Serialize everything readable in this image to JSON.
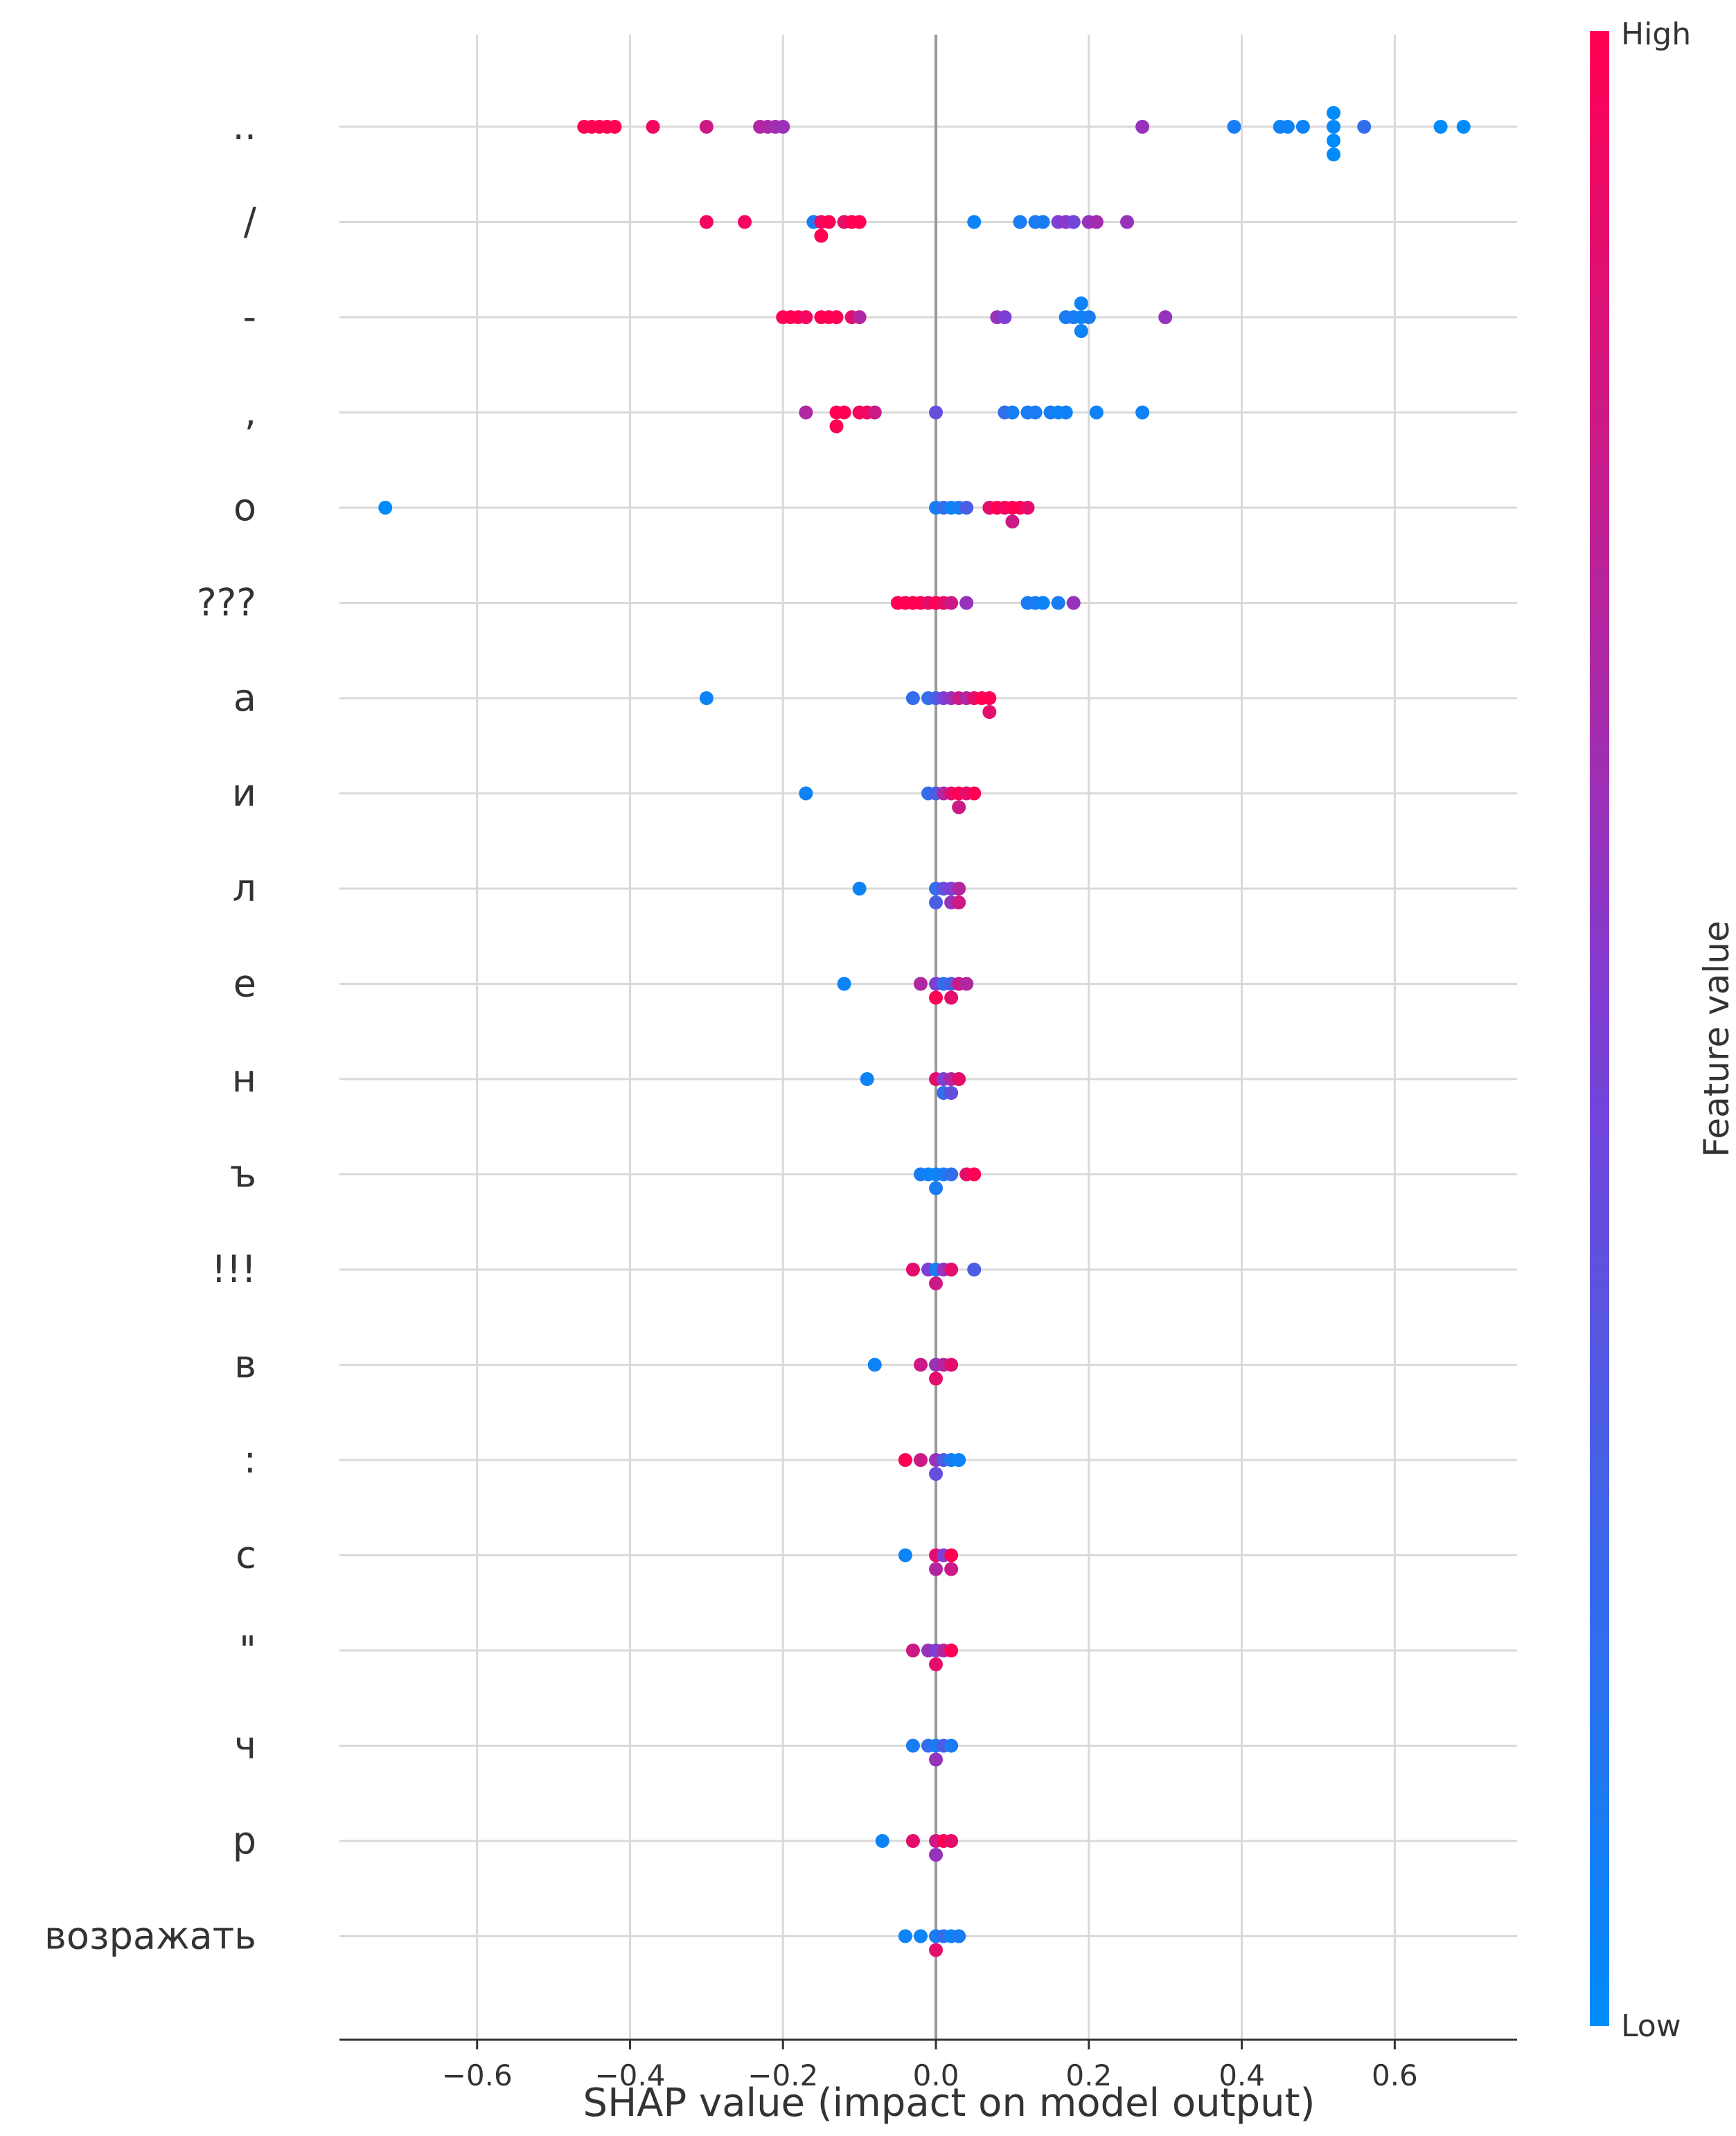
{
  "chart_data": {
    "type": "scatter",
    "subtype": "shap-beeswarm",
    "xlabel": "SHAP value (impact on model output)",
    "xlim": [
      -0.78,
      0.76
    ],
    "xticks": [
      -0.6,
      -0.4,
      -0.2,
      0.0,
      0.2,
      0.4,
      0.6
    ],
    "xtick_labels": [
      "−0.6",
      "−0.4",
      "−0.2",
      "0.0",
      "0.2",
      "0.4",
      "0.6"
    ],
    "colorbar": {
      "label": "Feature value",
      "high": "High",
      "low": "Low",
      "high_color": "#ff0052",
      "low_color": "#008bfb"
    },
    "features": [
      {
        "name": "..",
        "points": [
          [
            -0.46,
            1
          ],
          [
            -0.45,
            1
          ],
          [
            -0.44,
            1
          ],
          [
            -0.43,
            1
          ],
          [
            -0.42,
            1
          ],
          [
            -0.37,
            0.95
          ],
          [
            -0.3,
            0.8
          ],
          [
            -0.23,
            0.7
          ],
          [
            -0.22,
            0.68
          ],
          [
            -0.21,
            0.65
          ],
          [
            -0.2,
            0.62
          ],
          [
            0.27,
            0.6
          ],
          [
            0.39,
            0.1
          ],
          [
            0.45,
            0.05
          ],
          [
            0.46,
            0.05
          ],
          [
            0.48,
            0.05
          ],
          [
            0.52,
            0.02
          ],
          [
            0.52,
            0.0
          ],
          [
            0.52,
            0.0
          ],
          [
            0.52,
            0.0
          ],
          [
            0.56,
            0.2
          ],
          [
            0.66,
            0.0
          ],
          [
            0.69,
            0.0
          ]
        ]
      },
      {
        "name": "/",
        "points": [
          [
            -0.3,
            0.95
          ],
          [
            -0.25,
            0.95
          ],
          [
            -0.16,
            0.1
          ],
          [
            -0.15,
            0.95
          ],
          [
            -0.15,
            1
          ],
          [
            -0.14,
            1
          ],
          [
            -0.12,
            0.9
          ],
          [
            -0.11,
            1
          ],
          [
            -0.1,
            1
          ],
          [
            0.05,
            0.05
          ],
          [
            0.11,
            0.1
          ],
          [
            0.13,
            0.1
          ],
          [
            0.14,
            0.1
          ],
          [
            0.16,
            0.5
          ],
          [
            0.17,
            0.55
          ],
          [
            0.18,
            0.45
          ],
          [
            0.2,
            0.6
          ],
          [
            0.21,
            0.65
          ],
          [
            0.25,
            0.6
          ]
        ]
      },
      {
        "name": "-",
        "points": [
          [
            -0.2,
            1
          ],
          [
            -0.19,
            1
          ],
          [
            -0.18,
            1
          ],
          [
            -0.17,
            0.95
          ],
          [
            -0.15,
            1
          ],
          [
            -0.14,
            1
          ],
          [
            -0.13,
            1
          ],
          [
            -0.11,
            0.9
          ],
          [
            -0.1,
            0.7
          ],
          [
            0.08,
            0.6
          ],
          [
            0.09,
            0.5
          ],
          [
            0.17,
            0.1
          ],
          [
            0.18,
            0.1
          ],
          [
            0.19,
            0.05
          ],
          [
            0.19,
            0.05
          ],
          [
            0.19,
            0.05
          ],
          [
            0.2,
            0.1
          ],
          [
            0.3,
            0.6
          ]
        ]
      },
      {
        "name": ",",
        "points": [
          [
            -0.17,
            0.7
          ],
          [
            -0.13,
            1
          ],
          [
            -0.13,
            1
          ],
          [
            -0.12,
            1
          ],
          [
            -0.1,
            0.95
          ],
          [
            -0.09,
            0.95
          ],
          [
            -0.08,
            0.8
          ],
          [
            0.0,
            0.4
          ],
          [
            0.09,
            0.2
          ],
          [
            0.1,
            0.1
          ],
          [
            0.12,
            0.1
          ],
          [
            0.13,
            0.1
          ],
          [
            0.15,
            0.1
          ],
          [
            0.16,
            0.05
          ],
          [
            0.17,
            0.05
          ],
          [
            0.21,
            0.05
          ],
          [
            0.27,
            0.05
          ]
        ]
      },
      {
        "name": "о",
        "points": [
          [
            -0.72,
            0.0
          ],
          [
            0.0,
            0.1
          ],
          [
            0.01,
            0.2
          ],
          [
            0.02,
            0.05
          ],
          [
            0.03,
            0.1
          ],
          [
            0.04,
            0.3
          ],
          [
            0.07,
            0.9
          ],
          [
            0.08,
            1
          ],
          [
            0.09,
            0.95
          ],
          [
            0.1,
            1
          ],
          [
            0.1,
            0.8
          ],
          [
            0.11,
            1
          ],
          [
            0.12,
            0.9
          ]
        ]
      },
      {
        "name": "???",
        "points": [
          [
            -0.05,
            1
          ],
          [
            -0.04,
            1
          ],
          [
            -0.03,
            1
          ],
          [
            -0.02,
            1
          ],
          [
            -0.01,
            0.9
          ],
          [
            0.0,
            1
          ],
          [
            0.01,
            0.9
          ],
          [
            0.02,
            0.8
          ],
          [
            0.04,
            0.6
          ],
          [
            0.12,
            0.1
          ],
          [
            0.13,
            0.1
          ],
          [
            0.14,
            0.05
          ],
          [
            0.16,
            0.1
          ],
          [
            0.18,
            0.6
          ]
        ]
      },
      {
        "name": "а",
        "points": [
          [
            -0.3,
            0.05
          ],
          [
            -0.03,
            0.2
          ],
          [
            -0.01,
            0.2
          ],
          [
            0.0,
            0.3
          ],
          [
            0.01,
            0.5
          ],
          [
            0.02,
            0.6
          ],
          [
            0.03,
            0.8
          ],
          [
            0.04,
            0.7
          ],
          [
            0.05,
            0.9
          ],
          [
            0.06,
            1
          ],
          [
            0.07,
            1
          ],
          [
            0.07,
            0.9
          ]
        ]
      },
      {
        "name": "и",
        "points": [
          [
            -0.17,
            0.05
          ],
          [
            -0.01,
            0.2
          ],
          [
            0.0,
            0.3
          ],
          [
            0.01,
            0.7
          ],
          [
            0.02,
            0.9
          ],
          [
            0.03,
            1
          ],
          [
            0.03,
            0.8
          ],
          [
            0.04,
            0.9
          ],
          [
            0.05,
            1
          ]
        ]
      },
      {
        "name": "л",
        "points": [
          [
            -0.1,
            0.05
          ],
          [
            0.0,
            0.2
          ],
          [
            0.0,
            0.3
          ],
          [
            0.01,
            0.4
          ],
          [
            0.02,
            0.5
          ],
          [
            0.02,
            0.6
          ],
          [
            0.03,
            0.7
          ],
          [
            0.03,
            0.8
          ]
        ]
      },
      {
        "name": "е",
        "points": [
          [
            -0.12,
            0.05
          ],
          [
            -0.02,
            0.7
          ],
          [
            0.0,
            0.5
          ],
          [
            0.0,
            1
          ],
          [
            0.01,
            0.2
          ],
          [
            0.02,
            0.3
          ],
          [
            0.02,
            0.9
          ],
          [
            0.03,
            0.8
          ],
          [
            0.04,
            0.7
          ]
        ]
      },
      {
        "name": "н",
        "points": [
          [
            -0.09,
            0.05
          ],
          [
            0.0,
            0.9
          ],
          [
            0.01,
            0.5
          ],
          [
            0.01,
            0.2
          ],
          [
            0.02,
            0.7
          ],
          [
            0.02,
            0.4
          ],
          [
            0.03,
            0.9
          ]
        ]
      },
      {
        "name": "ъ",
        "points": [
          [
            -0.02,
            0.1
          ],
          [
            -0.01,
            0.05
          ],
          [
            0.0,
            0.05
          ],
          [
            0.0,
            0.1
          ],
          [
            0.01,
            0.1
          ],
          [
            0.02,
            0.2
          ],
          [
            0.04,
            0.9
          ],
          [
            0.05,
            1
          ]
        ]
      },
      {
        "name": "!!!",
        "points": [
          [
            -0.03,
            0.9
          ],
          [
            -0.01,
            0.5
          ],
          [
            0.0,
            0.1
          ],
          [
            0.0,
            0.8
          ],
          [
            0.01,
            0.6
          ],
          [
            0.02,
            0.9
          ],
          [
            0.05,
            0.3
          ]
        ]
      },
      {
        "name": "в",
        "points": [
          [
            -0.08,
            0.05
          ],
          [
            -0.02,
            0.8
          ],
          [
            0.0,
            0.6
          ],
          [
            0.0,
            0.9
          ],
          [
            0.01,
            0.7
          ],
          [
            0.02,
            0.9
          ]
        ]
      },
      {
        "name": ":",
        "points": [
          [
            -0.04,
            1
          ],
          [
            -0.02,
            0.8
          ],
          [
            0.0,
            0.6
          ],
          [
            0.0,
            0.4
          ],
          [
            0.01,
            0.3
          ],
          [
            0.02,
            0.1
          ],
          [
            0.03,
            0.05
          ]
        ]
      },
      {
        "name": "с",
        "points": [
          [
            -0.04,
            0.05
          ],
          [
            0.0,
            0.9
          ],
          [
            0.0,
            0.7
          ],
          [
            0.01,
            0.5
          ],
          [
            0.02,
            1
          ],
          [
            0.02,
            0.8
          ]
        ]
      },
      {
        "name": "\"",
        "points": [
          [
            -0.03,
            0.8
          ],
          [
            -0.01,
            0.6
          ],
          [
            0.0,
            0.5
          ],
          [
            0.0,
            0.9
          ],
          [
            0.01,
            0.7
          ],
          [
            0.02,
            1
          ]
        ]
      },
      {
        "name": "ч",
        "points": [
          [
            -0.03,
            0.1
          ],
          [
            -0.01,
            0.2
          ],
          [
            0.0,
            0.1
          ],
          [
            0.0,
            0.6
          ],
          [
            0.01,
            0.3
          ],
          [
            0.02,
            0.1
          ]
        ]
      },
      {
        "name": "р",
        "points": [
          [
            -0.07,
            0.05
          ],
          [
            -0.03,
            0.9
          ],
          [
            0.0,
            0.8
          ],
          [
            0.0,
            0.6
          ],
          [
            0.01,
            1
          ],
          [
            0.02,
            0.9
          ]
        ]
      },
      {
        "name": "возражать",
        "points": [
          [
            -0.04,
            0.05
          ],
          [
            -0.02,
            0.05
          ],
          [
            0.0,
            0.1
          ],
          [
            0.0,
            0.9
          ],
          [
            0.01,
            0.2
          ],
          [
            0.02,
            0.05
          ],
          [
            0.03,
            0.1
          ]
        ]
      }
    ]
  }
}
